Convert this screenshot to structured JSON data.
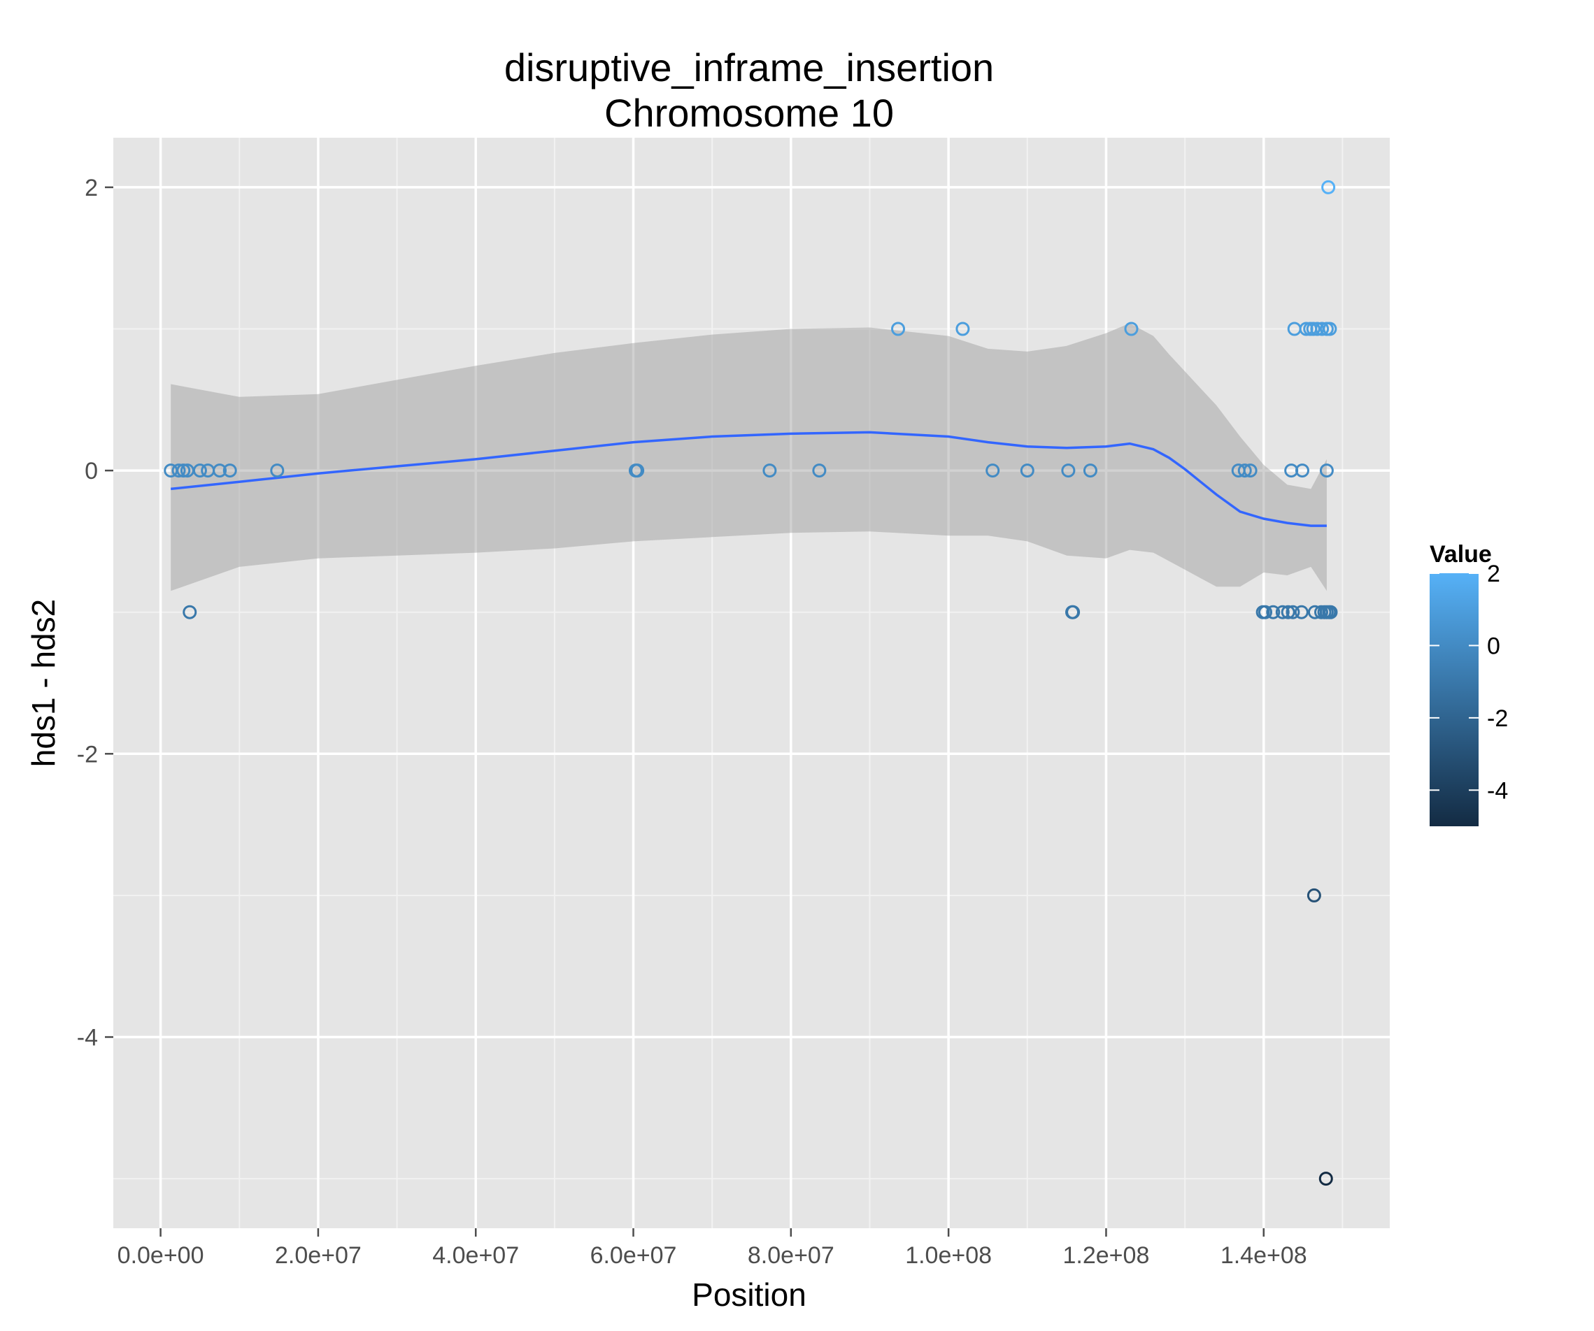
{
  "chart_data": {
    "type": "scatter",
    "title": "disruptive_inframe_insertion",
    "subtitle": "Chromosome 10",
    "xlabel": "Position",
    "ylabel": "hds1 - hds2",
    "xlim": [
      -6000000,
      156000000
    ],
    "ylim": [
      -5.35,
      2.35
    ],
    "x_ticks": [
      0,
      20000000,
      40000000,
      60000000,
      80000000,
      100000000,
      120000000,
      140000000
    ],
    "x_tick_labels": [
      "0.0e+00",
      "2.0e+07",
      "4.0e+07",
      "6.0e+07",
      "8.0e+07",
      "1.0e+08",
      "1.2e+08",
      "1.4e+08"
    ],
    "y_ticks": [
      -4,
      -2,
      0,
      2
    ],
    "y_tick_labels": [
      "-4",
      "-2",
      "0",
      "2"
    ],
    "grid": true,
    "legend": {
      "title": "Value",
      "placement": "right",
      "range": [
        -5,
        2
      ],
      "ticks": [
        2,
        0,
        -2,
        -4
      ],
      "tick_labels": [
        "2",
        "0",
        "-2",
        "-4"
      ],
      "color_low": "#132b43",
      "color_high": "#56b1f7"
    },
    "points": [
      {
        "x": 1300000,
        "y": 0
      },
      {
        "x": 2300000,
        "y": 0
      },
      {
        "x": 2900000,
        "y": 0
      },
      {
        "x": 3400000,
        "y": 0
      },
      {
        "x": 5000000,
        "y": 0
      },
      {
        "x": 6000000,
        "y": 0
      },
      {
        "x": 7500000,
        "y": 0
      },
      {
        "x": 8800000,
        "y": 0
      },
      {
        "x": 14800000,
        "y": 0
      },
      {
        "x": 60300000,
        "y": 0
      },
      {
        "x": 60500000,
        "y": 0
      },
      {
        "x": 77300000,
        "y": 0
      },
      {
        "x": 83600000,
        "y": 0
      },
      {
        "x": 105600000,
        "y": 0
      },
      {
        "x": 110000000,
        "y": 0
      },
      {
        "x": 115200000,
        "y": 0
      },
      {
        "x": 118000000,
        "y": 0
      },
      {
        "x": 136800000,
        "y": 0
      },
      {
        "x": 137600000,
        "y": 0
      },
      {
        "x": 138300000,
        "y": 0
      },
      {
        "x": 143500000,
        "y": 0
      },
      {
        "x": 144900000,
        "y": 0
      },
      {
        "x": 148000000,
        "y": 0
      },
      {
        "x": 3700000,
        "y": -1
      },
      {
        "x": 115700000,
        "y": -1
      },
      {
        "x": 115800000,
        "y": -1
      },
      {
        "x": 139900000,
        "y": -1
      },
      {
        "x": 140200000,
        "y": -1
      },
      {
        "x": 141200000,
        "y": -1
      },
      {
        "x": 142400000,
        "y": -1
      },
      {
        "x": 143100000,
        "y": -1
      },
      {
        "x": 143700000,
        "y": -1
      },
      {
        "x": 144800000,
        "y": -1
      },
      {
        "x": 146500000,
        "y": -1
      },
      {
        "x": 147300000,
        "y": -1
      },
      {
        "x": 147700000,
        "y": -1
      },
      {
        "x": 148000000,
        "y": -1
      },
      {
        "x": 148300000,
        "y": -1
      },
      {
        "x": 148500000,
        "y": -1
      },
      {
        "x": 93600000,
        "y": 1
      },
      {
        "x": 101800000,
        "y": 1
      },
      {
        "x": 123200000,
        "y": 1
      },
      {
        "x": 143900000,
        "y": 1
      },
      {
        "x": 145400000,
        "y": 1
      },
      {
        "x": 145900000,
        "y": 1
      },
      {
        "x": 146300000,
        "y": 1
      },
      {
        "x": 146800000,
        "y": 1
      },
      {
        "x": 147400000,
        "y": 1
      },
      {
        "x": 148000000,
        "y": 1
      },
      {
        "x": 148400000,
        "y": 1
      },
      {
        "x": 148200000,
        "y": 2
      },
      {
        "x": 146400000,
        "y": -3
      },
      {
        "x": 147900000,
        "y": -5
      }
    ],
    "smooth": {
      "x": [
        1300000,
        10000000,
        20000000,
        30000000,
        40000000,
        50000000,
        60000000,
        70000000,
        80000000,
        90000000,
        100000000,
        105000000,
        110000000,
        115000000,
        120000000,
        123000000,
        126000000,
        128000000,
        130000000,
        132000000,
        134000000,
        137000000,
        140000000,
        143000000,
        146000000,
        148000000
      ],
      "y": [
        -0.13,
        -0.08,
        -0.02,
        0.03,
        0.08,
        0.14,
        0.2,
        0.24,
        0.26,
        0.27,
        0.24,
        0.2,
        0.17,
        0.16,
        0.17,
        0.19,
        0.15,
        0.09,
        0.01,
        -0.08,
        -0.17,
        -0.29,
        -0.34,
        -0.37,
        -0.39,
        -0.39
      ],
      "lower": [
        -0.85,
        -0.68,
        -0.62,
        -0.6,
        -0.58,
        -0.55,
        -0.5,
        -0.47,
        -0.44,
        -0.43,
        -0.46,
        -0.46,
        -0.5,
        -0.6,
        -0.62,
        -0.56,
        -0.58,
        -0.64,
        -0.7,
        -0.76,
        -0.82,
        -0.82,
        -0.72,
        -0.74,
        -0.68,
        -0.85
      ],
      "upper": [
        0.61,
        0.52,
        0.54,
        0.64,
        0.74,
        0.83,
        0.9,
        0.96,
        1.0,
        1.01,
        0.95,
        0.86,
        0.84,
        0.88,
        0.97,
        1.04,
        0.95,
        0.82,
        0.7,
        0.58,
        0.46,
        0.24,
        0.04,
        -0.1,
        -0.13,
        0.08
      ]
    }
  }
}
